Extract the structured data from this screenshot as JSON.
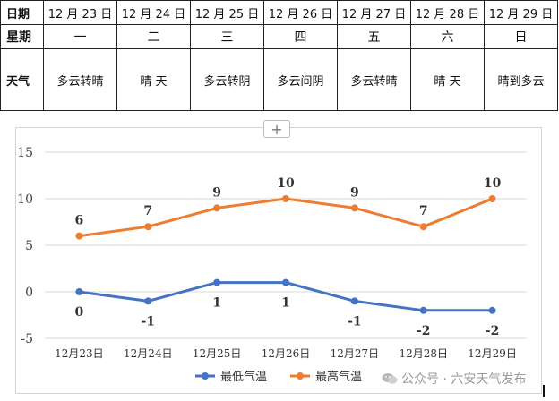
{
  "table": {
    "rows": {
      "date": {
        "label": "日期",
        "cells": [
          "12 月 23 日",
          "12 月 24 日",
          "12 月 25 日",
          "12 月 26 日",
          "12 月 27 日",
          "12 月 28 日",
          "12 月 29 日"
        ]
      },
      "week": {
        "label": "星期",
        "cells": [
          "一",
          "二",
          "三",
          "四",
          "五",
          "六",
          "日"
        ]
      },
      "cond": {
        "label": "天气",
        "cells": [
          "多云转晴",
          "晴  天",
          "多云转阴",
          "多云间阴",
          "多云转晴",
          "晴  天",
          "晴到多云"
        ]
      }
    }
  },
  "expand_button": {
    "icon": "plus-icon",
    "glyph": "+"
  },
  "chart_data": {
    "type": "line",
    "categories": [
      "12月23日",
      "12月24日",
      "12月25日",
      "12月26日",
      "12月27日",
      "12月28日",
      "12月29日"
    ],
    "series": [
      {
        "name": "最低气温",
        "values": [
          0,
          -1,
          1,
          1,
          -1,
          -2,
          -2
        ],
        "color": "#4472c4",
        "label_pos": "below"
      },
      {
        "name": "最高气温",
        "values": [
          6,
          7,
          9,
          10,
          9,
          7,
          10
        ],
        "color": "#ed7d31",
        "label_pos": "above"
      }
    ],
    "ylim": [
      -5,
      15
    ],
    "yticks": [
      -5,
      0,
      5,
      10,
      15
    ],
    "grid": true,
    "legend_position": "bottom",
    "data_labels": true
  },
  "watermark": {
    "text": "公众号 · 六安天气发布",
    "icon": "wechat-icon"
  }
}
